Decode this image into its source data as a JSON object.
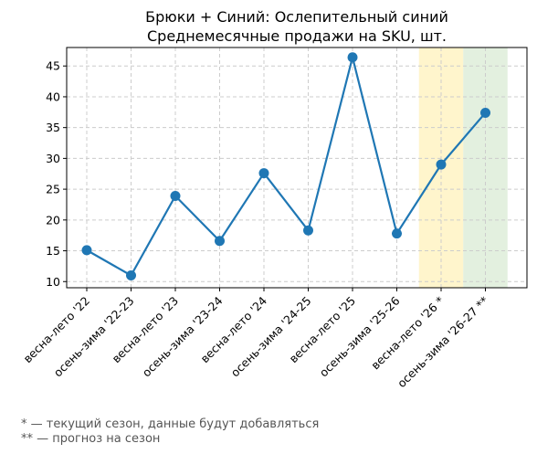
{
  "chart_data": {
    "type": "line",
    "title_line1": "Брюки + Синий: Ослепительный синий",
    "title_line2": "Среднемесячные продажи на SKU, шт.",
    "xlabel": "",
    "ylabel": "",
    "categories": [
      "весна-лето '22",
      "осень-зима '22-23",
      "весна-лето '23",
      "осень-зима '23-24",
      "весна-лето '24",
      "осень-зима '24-25",
      "весна-лето '25",
      "осень-зима '25-26",
      "весна-лето '26 *",
      "осень-зима '26-27 **"
    ],
    "series": [
      {
        "values": [
          15.1,
          11.0,
          23.9,
          16.6,
          27.6,
          18.3,
          46.4,
          17.8,
          29.0,
          37.4
        ]
      }
    ],
    "ylim": [
      9.0,
      48.0
    ],
    "yticks": [
      10,
      15,
      20,
      25,
      30,
      35,
      40,
      45
    ],
    "grid": true,
    "line_color": "#1f77b4",
    "highlight_current": {
      "category": "весна-лето '26 *",
      "color": "#fff5cc"
    },
    "highlight_forecast": {
      "category": "осень-зима '26-27 **",
      "color": "#e3f0df"
    }
  },
  "footnotes": {
    "current": "* — текущий сезон, данные будут добавляться",
    "forecast": "** — прогноз на сезон"
  }
}
